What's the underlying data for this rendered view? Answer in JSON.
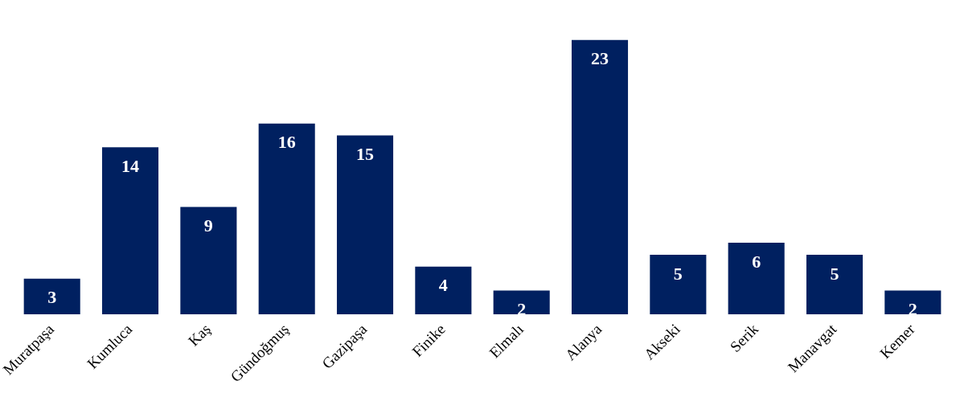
{
  "chart_data": {
    "type": "bar",
    "categories": [
      "Muratpaşa",
      "Kumluca",
      "Kaş",
      "Gündoğmuş",
      "Gazipaşa",
      "Finike",
      "Elmalı",
      "Alanya",
      "Akseki",
      "Serik",
      "Manavgat",
      "Kemer"
    ],
    "values": [
      3,
      14,
      9,
      16,
      15,
      4,
      2,
      23,
      5,
      6,
      5,
      2
    ],
    "color": "#002060",
    "data_labels": true,
    "grid": false,
    "legend": false
  }
}
